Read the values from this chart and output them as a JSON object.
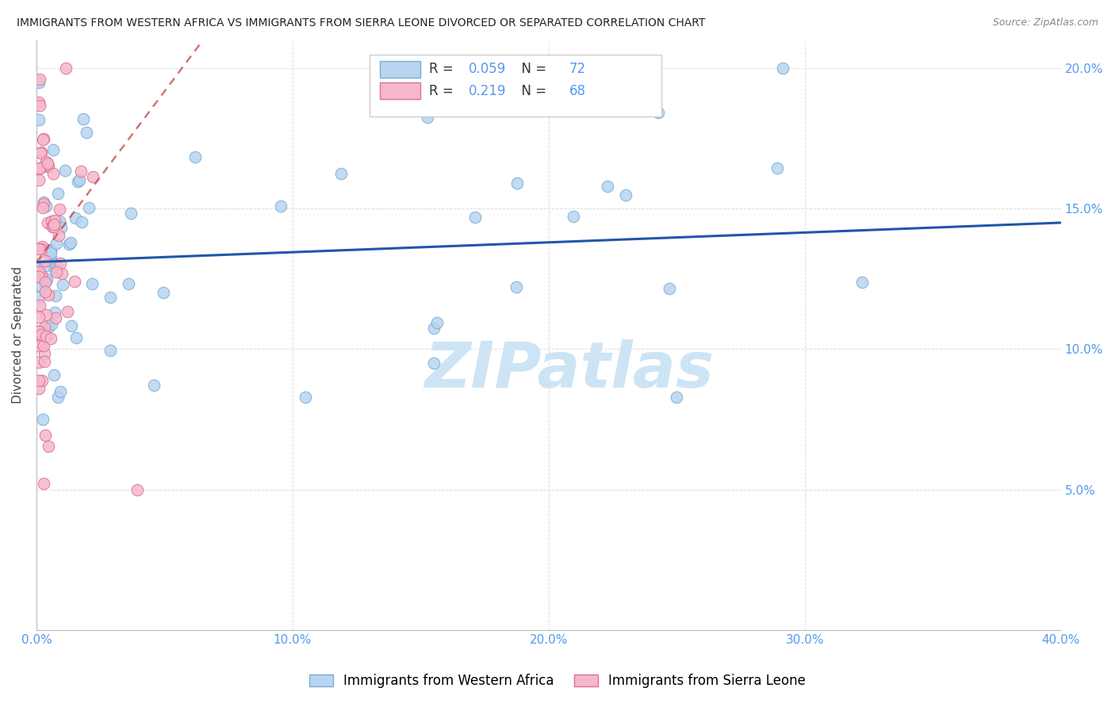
{
  "title": "IMMIGRANTS FROM WESTERN AFRICA VS IMMIGRANTS FROM SIERRA LEONE DIVORCED OR SEPARATED CORRELATION CHART",
  "source": "Source: ZipAtlas.com",
  "ylabel": "Divorced or Separated",
  "xlim": [
    0.0,
    0.4
  ],
  "ylim": [
    0.0,
    0.21
  ],
  "xticks": [
    0.0,
    0.1,
    0.2,
    0.3,
    0.4
  ],
  "yticks": [
    0.05,
    0.1,
    0.15,
    0.2
  ],
  "xticklabels": [
    "0.0%",
    "10.0%",
    "20.0%",
    "30.0%",
    "40.0%"
  ],
  "yticklabels_right": [
    "5.0%",
    "10.0%",
    "15.0%",
    "20.0%"
  ],
  "series": [
    {
      "name": "Immigrants from Western Africa",
      "color": "#b8d4f0",
      "edge_color": "#7aadd4",
      "R": 0.059,
      "N": 72,
      "trend_color": "#2255aa",
      "trend_style": "solid"
    },
    {
      "name": "Immigrants from Sierra Leone",
      "color": "#f5b8cb",
      "edge_color": "#e07090",
      "R": 0.219,
      "N": 68,
      "trend_color": "#cc4444",
      "trend_style": "dashed"
    }
  ],
  "watermark_text": "ZIPatlas",
  "watermark_color": "#cde4f5",
  "background_color": "#ffffff",
  "grid_color": "#dddddd",
  "tick_color": "#5599ee",
  "R_N_color": "#5599ee",
  "legend_R_color": "#333333",
  "blue_line_start_y": 0.131,
  "blue_line_end_y": 0.145,
  "pink_line_start_y": 0.131,
  "pink_line_end_y": 0.21
}
